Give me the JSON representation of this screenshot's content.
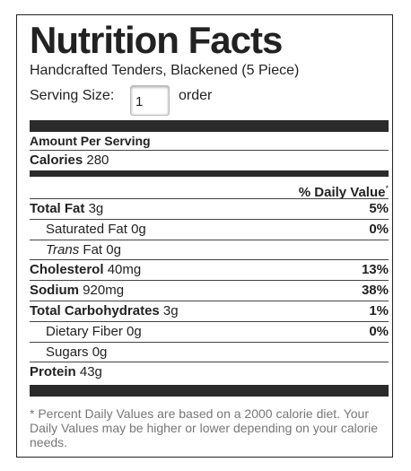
{
  "header": {
    "title": "Nutrition Facts",
    "subtitle": "Handcrafted Tenders, Blackened (5 Piece)",
    "serving_label": "Serving Size:",
    "serving_value": "1",
    "serving_unit": "order"
  },
  "amount_per_serving": "Amount Per Serving",
  "calories": {
    "label": "Calories",
    "value": "280"
  },
  "daily_value_header": {
    "label": "% Daily Value",
    "mark": "*"
  },
  "rows": [
    {
      "label": "Total Fat",
      "amount": "3g",
      "daily_value": "5%",
      "bold": true
    },
    {
      "label": "Saturated Fat",
      "amount": "0g",
      "daily_value": "0%",
      "indent": true
    },
    {
      "label_italic": "Trans",
      "label": "Fat",
      "amount": "0g",
      "indent": true
    },
    {
      "label": "Cholesterol",
      "amount": "40mg",
      "daily_value": "13%",
      "bold": true
    },
    {
      "label": "Sodium",
      "amount": "920mg",
      "daily_value": "38%",
      "bold": true
    },
    {
      "label": "Total Carbohydrates",
      "amount": "3g",
      "daily_value": "1%",
      "bold": true
    },
    {
      "label": "Dietary Fiber",
      "amount": "0g",
      "daily_value": "0%",
      "indent": true
    },
    {
      "label": "Sugars",
      "amount": "0g",
      "indent": true
    },
    {
      "label": "Protein",
      "amount": "43g",
      "bold": true,
      "last": true
    }
  ],
  "footnote": "* Percent Daily Values are based on a 2000 calorie diet. Your Daily Values may be higher or lower depending on your calorie needs."
}
